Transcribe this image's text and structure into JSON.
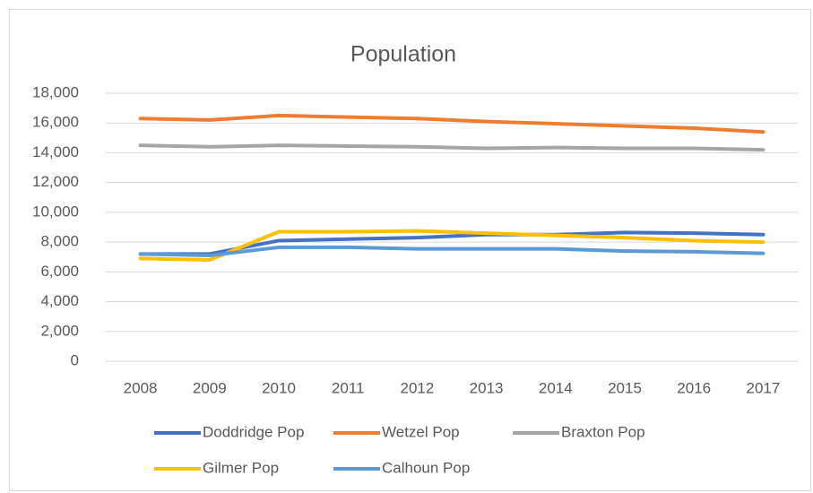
{
  "chart_data": {
    "type": "line",
    "title": "Population",
    "categories": [
      "2008",
      "2009",
      "2010",
      "2011",
      "2012",
      "2013",
      "2014",
      "2015",
      "2016",
      "2017"
    ],
    "series": [
      {
        "name": "Doddridge Pop",
        "color": "#4472c4",
        "values": [
          7200,
          7200,
          8100,
          8200,
          8300,
          8500,
          8500,
          8650,
          8600,
          8500
        ]
      },
      {
        "name": "Wetzel Pop",
        "color": "#ed7d31",
        "values": [
          16300,
          16200,
          16500,
          16400,
          16300,
          16100,
          15950,
          15800,
          15650,
          15400
        ]
      },
      {
        "name": "Braxton Pop",
        "color": "#a5a5a5",
        "values": [
          14500,
          14400,
          14500,
          14450,
          14400,
          14300,
          14350,
          14300,
          14300,
          14200
        ]
      },
      {
        "name": "Gilmer Pop",
        "color": "#ffc000",
        "values": [
          6900,
          6800,
          8700,
          8700,
          8750,
          8600,
          8450,
          8300,
          8100,
          8000
        ]
      },
      {
        "name": "Calhoun Pop",
        "color": "#5b9bd5",
        "values": [
          7200,
          7100,
          7650,
          7650,
          7550,
          7550,
          7550,
          7400,
          7350,
          7250
        ]
      }
    ],
    "ylim": [
      0,
      18000
    ],
    "yticks": [
      0,
      {
        "value": 2000,
        "label": "2,000"
      },
      {
        "value": 4000,
        "label": "4,000"
      },
      {
        "value": 6000,
        "label": "6,000"
      },
      {
        "value": 8000,
        "label": "8,000"
      },
      {
        "value": 10000,
        "label": "10,000"
      },
      {
        "value": 12000,
        "label": "12,000"
      },
      {
        "value": 14000,
        "label": "14,000"
      },
      {
        "value": 16000,
        "label": "16,000"
      },
      {
        "value": 18000,
        "label": "18,000"
      }
    ],
    "grid": true,
    "legend": "bottom"
  }
}
